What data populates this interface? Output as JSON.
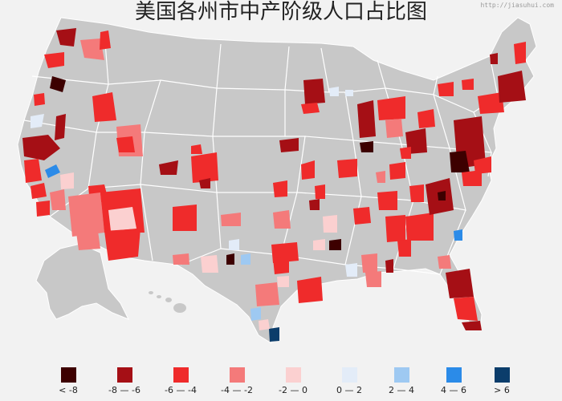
{
  "title": "美国各州市中产阶级人口占比图",
  "watermark": "http://jiasuhui.com",
  "colors": {
    "background": "#f2f2f2",
    "land": "#c8c8c8",
    "state_border": "#ffffff"
  },
  "legend": [
    {
      "label": "< -8",
      "color": "#3d0000"
    },
    {
      "label": "-8 — -6",
      "color": "#a50f15"
    },
    {
      "label": "-6 — -4",
      "color": "#ef2b2b"
    },
    {
      "label": "-4 — -2",
      "color": "#f47a7a"
    },
    {
      "label": "-2 — 0",
      "color": "#fbd0d0"
    },
    {
      "label": "0 — 2",
      "color": "#e3ecf8"
    },
    {
      "label": "2 — 4",
      "color": "#9ec9f2"
    },
    {
      "label": "4 — 6",
      "color": "#2b8be8"
    },
    {
      "label": "> 6",
      "color": "#0b3d6b"
    }
  ]
}
